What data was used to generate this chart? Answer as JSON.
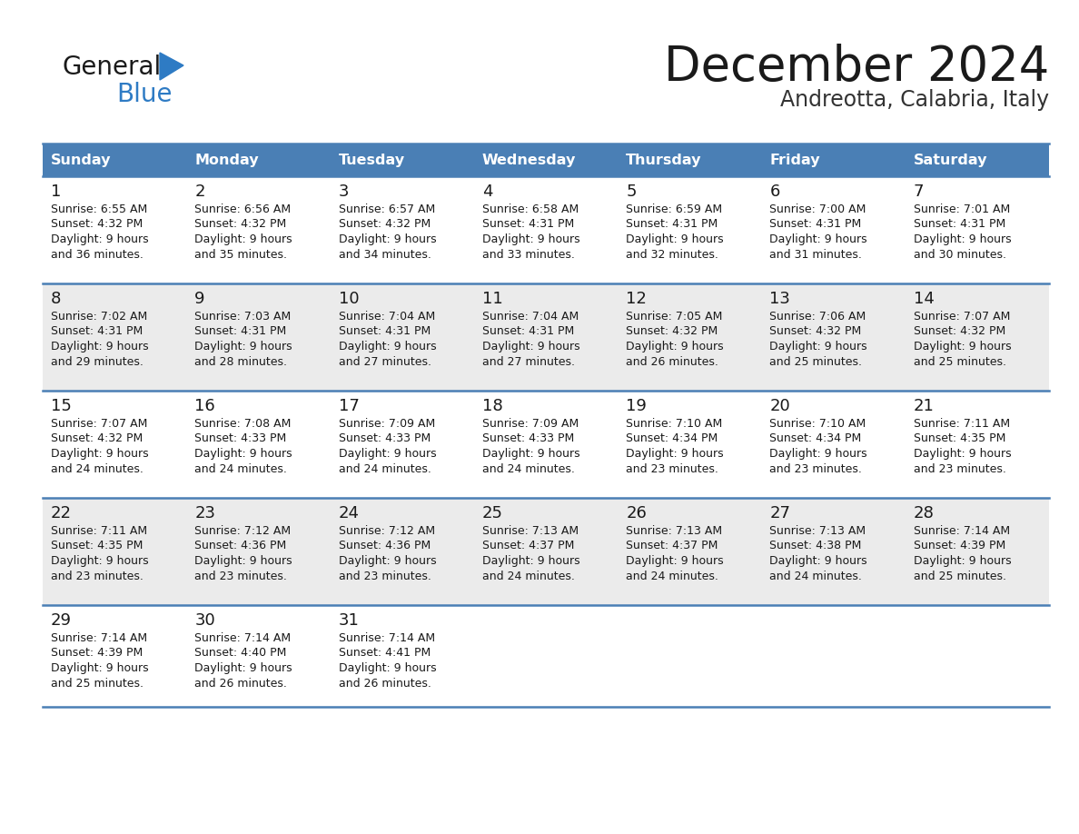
{
  "title": "December 2024",
  "subtitle": "Andreotta, Calabria, Italy",
  "header_color": "#4A7FB5",
  "header_text_color": "#FFFFFF",
  "bg_color": "#FFFFFF",
  "cell_bg_odd": "#FFFFFF",
  "cell_bg_even": "#EBEBEB",
  "border_color": "#4A7FB5",
  "text_color": "#1a1a1a",
  "days_of_week": [
    "Sunday",
    "Monday",
    "Tuesday",
    "Wednesday",
    "Thursday",
    "Friday",
    "Saturday"
  ],
  "weeks": [
    [
      {
        "day": 1,
        "sunrise": "6:55 AM",
        "sunset": "4:32 PM",
        "daylight_hours": 9,
        "daylight_minutes": 36
      },
      {
        "day": 2,
        "sunrise": "6:56 AM",
        "sunset": "4:32 PM",
        "daylight_hours": 9,
        "daylight_minutes": 35
      },
      {
        "day": 3,
        "sunrise": "6:57 AM",
        "sunset": "4:32 PM",
        "daylight_hours": 9,
        "daylight_minutes": 34
      },
      {
        "day": 4,
        "sunrise": "6:58 AM",
        "sunset": "4:31 PM",
        "daylight_hours": 9,
        "daylight_minutes": 33
      },
      {
        "day": 5,
        "sunrise": "6:59 AM",
        "sunset": "4:31 PM",
        "daylight_hours": 9,
        "daylight_minutes": 32
      },
      {
        "day": 6,
        "sunrise": "7:00 AM",
        "sunset": "4:31 PM",
        "daylight_hours": 9,
        "daylight_minutes": 31
      },
      {
        "day": 7,
        "sunrise": "7:01 AM",
        "sunset": "4:31 PM",
        "daylight_hours": 9,
        "daylight_minutes": 30
      }
    ],
    [
      {
        "day": 8,
        "sunrise": "7:02 AM",
        "sunset": "4:31 PM",
        "daylight_hours": 9,
        "daylight_minutes": 29
      },
      {
        "day": 9,
        "sunrise": "7:03 AM",
        "sunset": "4:31 PM",
        "daylight_hours": 9,
        "daylight_minutes": 28
      },
      {
        "day": 10,
        "sunrise": "7:04 AM",
        "sunset": "4:31 PM",
        "daylight_hours": 9,
        "daylight_minutes": 27
      },
      {
        "day": 11,
        "sunrise": "7:04 AM",
        "sunset": "4:31 PM",
        "daylight_hours": 9,
        "daylight_minutes": 27
      },
      {
        "day": 12,
        "sunrise": "7:05 AM",
        "sunset": "4:32 PM",
        "daylight_hours": 9,
        "daylight_minutes": 26
      },
      {
        "day": 13,
        "sunrise": "7:06 AM",
        "sunset": "4:32 PM",
        "daylight_hours": 9,
        "daylight_minutes": 25
      },
      {
        "day": 14,
        "sunrise": "7:07 AM",
        "sunset": "4:32 PM",
        "daylight_hours": 9,
        "daylight_minutes": 25
      }
    ],
    [
      {
        "day": 15,
        "sunrise": "7:07 AM",
        "sunset": "4:32 PM",
        "daylight_hours": 9,
        "daylight_minutes": 24
      },
      {
        "day": 16,
        "sunrise": "7:08 AM",
        "sunset": "4:33 PM",
        "daylight_hours": 9,
        "daylight_minutes": 24
      },
      {
        "day": 17,
        "sunrise": "7:09 AM",
        "sunset": "4:33 PM",
        "daylight_hours": 9,
        "daylight_minutes": 24
      },
      {
        "day": 18,
        "sunrise": "7:09 AM",
        "sunset": "4:33 PM",
        "daylight_hours": 9,
        "daylight_minutes": 24
      },
      {
        "day": 19,
        "sunrise": "7:10 AM",
        "sunset": "4:34 PM",
        "daylight_hours": 9,
        "daylight_minutes": 23
      },
      {
        "day": 20,
        "sunrise": "7:10 AM",
        "sunset": "4:34 PM",
        "daylight_hours": 9,
        "daylight_minutes": 23
      },
      {
        "day": 21,
        "sunrise": "7:11 AM",
        "sunset": "4:35 PM",
        "daylight_hours": 9,
        "daylight_minutes": 23
      }
    ],
    [
      {
        "day": 22,
        "sunrise": "7:11 AM",
        "sunset": "4:35 PM",
        "daylight_hours": 9,
        "daylight_minutes": 23
      },
      {
        "day": 23,
        "sunrise": "7:12 AM",
        "sunset": "4:36 PM",
        "daylight_hours": 9,
        "daylight_minutes": 23
      },
      {
        "day": 24,
        "sunrise": "7:12 AM",
        "sunset": "4:36 PM",
        "daylight_hours": 9,
        "daylight_minutes": 23
      },
      {
        "day": 25,
        "sunrise": "7:13 AM",
        "sunset": "4:37 PM",
        "daylight_hours": 9,
        "daylight_minutes": 24
      },
      {
        "day": 26,
        "sunrise": "7:13 AM",
        "sunset": "4:37 PM",
        "daylight_hours": 9,
        "daylight_minutes": 24
      },
      {
        "day": 27,
        "sunrise": "7:13 AM",
        "sunset": "4:38 PM",
        "daylight_hours": 9,
        "daylight_minutes": 24
      },
      {
        "day": 28,
        "sunrise": "7:14 AM",
        "sunset": "4:39 PM",
        "daylight_hours": 9,
        "daylight_minutes": 25
      }
    ],
    [
      {
        "day": 29,
        "sunrise": "7:14 AM",
        "sunset": "4:39 PM",
        "daylight_hours": 9,
        "daylight_minutes": 25
      },
      {
        "day": 30,
        "sunrise": "7:14 AM",
        "sunset": "4:40 PM",
        "daylight_hours": 9,
        "daylight_minutes": 26
      },
      {
        "day": 31,
        "sunrise": "7:14 AM",
        "sunset": "4:41 PM",
        "daylight_hours": 9,
        "daylight_minutes": 26
      },
      null,
      null,
      null,
      null
    ]
  ]
}
